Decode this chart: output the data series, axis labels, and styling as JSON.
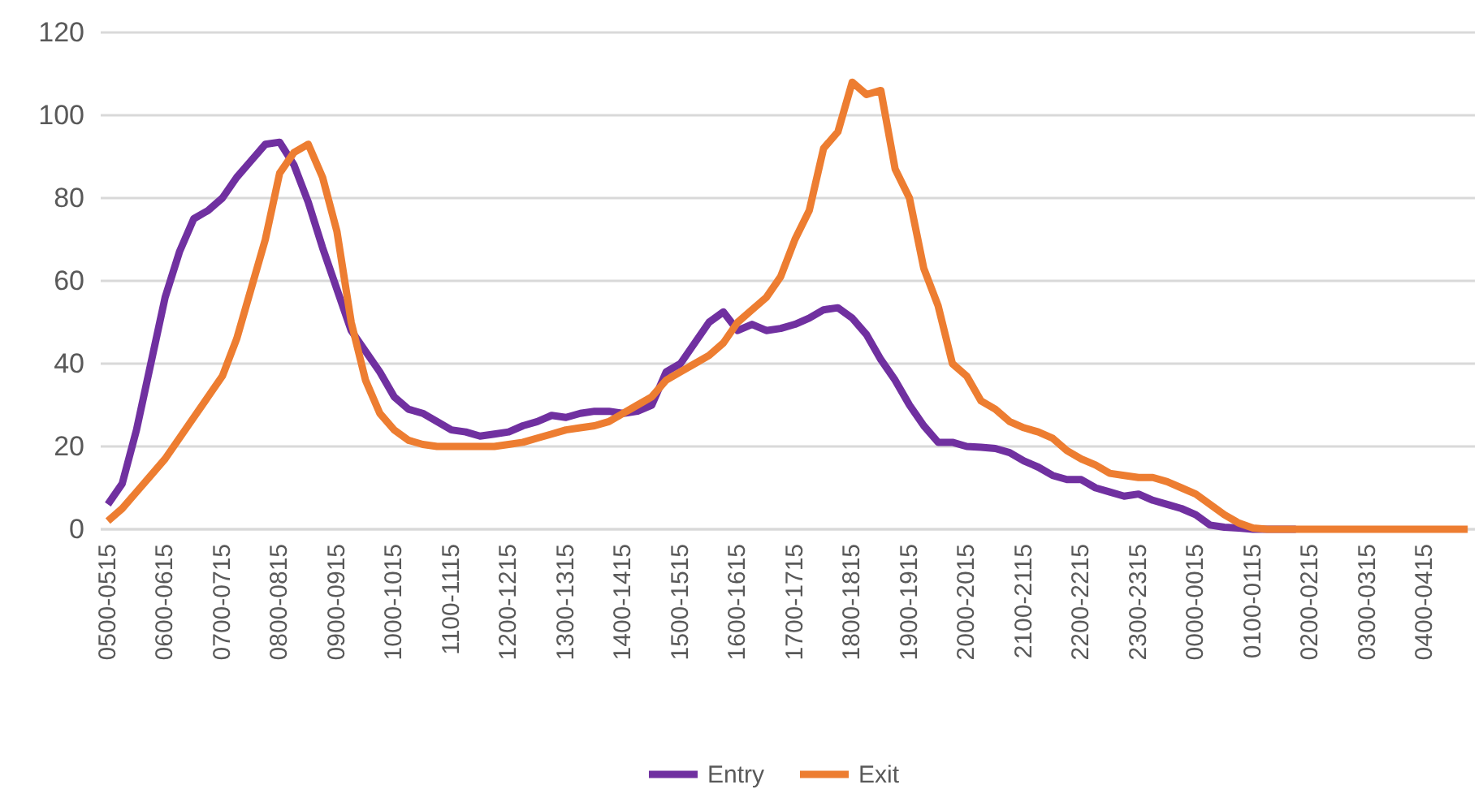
{
  "chart_data": {
    "type": "line",
    "categories": [
      "0500-0515",
      null,
      null,
      null,
      "0600-0615",
      null,
      null,
      null,
      "0700-0715",
      null,
      null,
      null,
      "0800-0815",
      null,
      null,
      null,
      "0900-0915",
      null,
      null,
      null,
      "1000-1015",
      null,
      null,
      null,
      "1100-1115",
      null,
      null,
      null,
      "1200-1215",
      null,
      null,
      null,
      "1300-1315",
      null,
      null,
      null,
      "1400-1415",
      null,
      null,
      null,
      "1500-1515",
      null,
      null,
      null,
      "1600-1615",
      null,
      null,
      null,
      "1700-1715",
      null,
      null,
      null,
      "1800-1815",
      null,
      null,
      null,
      "1900-1915",
      null,
      null,
      null,
      "2000-2015",
      null,
      null,
      null,
      "2100-2115",
      null,
      null,
      null,
      "2200-2215",
      null,
      null,
      null,
      "2300-2315",
      null,
      null,
      null,
      "0000-0015",
      null,
      null,
      null,
      "0100-0115",
      null,
      null,
      null,
      "0200-0215",
      null,
      null,
      null,
      "0300-0315",
      null,
      null,
      null,
      "0400-0415",
      null,
      null,
      null
    ],
    "series": [
      {
        "name": "Entry",
        "color": "#7030a0",
        "values": [
          6,
          11,
          24,
          40,
          56,
          67,
          75,
          77,
          80,
          85,
          89,
          93,
          93.5,
          88,
          79,
          68,
          58,
          48,
          43,
          38,
          32,
          29,
          28,
          26,
          24,
          23.5,
          22.5,
          23,
          23.5,
          25,
          26,
          27.5,
          27,
          28,
          28.5,
          28.5,
          28,
          28.5,
          30,
          38,
          40,
          45,
          50,
          52.5,
          48,
          49.5,
          48,
          48.5,
          49.5,
          51,
          53,
          53.5,
          51,
          47,
          41,
          36,
          30,
          25,
          21,
          21,
          20,
          19.8,
          19.5,
          18.5,
          16.5,
          15,
          13,
          12,
          12,
          10,
          9,
          8,
          8.5,
          7,
          6,
          5,
          3.5,
          1,
          0.5,
          0.3,
          0,
          0,
          0,
          0,
          null,
          null,
          null,
          null,
          null,
          null,
          null,
          null,
          null,
          null,
          null,
          null
        ]
      },
      {
        "name": "Exit",
        "color": "#ed7d31",
        "values": [
          2,
          5,
          9,
          13,
          17,
          22,
          27,
          32,
          37,
          46,
          58,
          70,
          86,
          91,
          93,
          85,
          72,
          50,
          36,
          28,
          24,
          21.5,
          20.5,
          20,
          20,
          20,
          20,
          20,
          20.5,
          21,
          22,
          23,
          24,
          24.5,
          25,
          26,
          28,
          30,
          32,
          36,
          38,
          40,
          42,
          45,
          50,
          53,
          56,
          61,
          70,
          77,
          92,
          96,
          108,
          105,
          106,
          87,
          80,
          63,
          54,
          40,
          37,
          31,
          29,
          26,
          24.5,
          23.5,
          22,
          19,
          17,
          15.5,
          13.5,
          13,
          12.5,
          12.5,
          11.5,
          10,
          8.5,
          6,
          3.5,
          1.5,
          0.3,
          0,
          0,
          0,
          0,
          0,
          0,
          0,
          0,
          0,
          0,
          0,
          0,
          0,
          0,
          0
        ]
      }
    ],
    "ylim": [
      0,
      120
    ],
    "yticks": [
      0,
      20,
      40,
      60,
      80,
      100,
      120
    ],
    "grid": "y",
    "legend": "bottom",
    "marker": "none",
    "line_style": "solid"
  }
}
